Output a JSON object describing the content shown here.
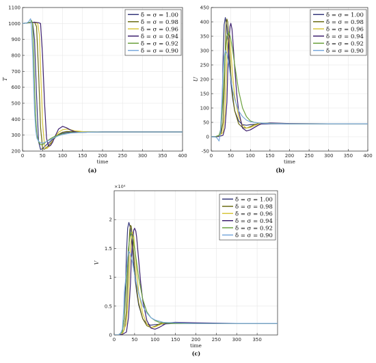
{
  "figure": {
    "colors": [
      "#34377a",
      "#6b6b12",
      "#d7c63a",
      "#3c1f6e",
      "#6aa13c",
      "#79a9dc"
    ]
  },
  "chart_data": [
    {
      "type": "line",
      "panel_label": "(a)",
      "xlabel": "time",
      "ylabel": "T",
      "xlim": [
        0,
        400
      ],
      "ylim": [
        200,
        1100
      ],
      "x_ticks": [
        0,
        50,
        100,
        150,
        200,
        250,
        300,
        350,
        400
      ],
      "y_ticks": [
        200,
        300,
        400,
        500,
        600,
        700,
        800,
        900,
        1000,
        1100
      ],
      "grid": true,
      "legend_position": "top-right",
      "series": [
        {
          "name": "δ = σ = 1.00",
          "x": [
            0,
            10,
            20,
            25,
            30,
            35,
            40,
            45,
            50,
            55,
            60,
            70,
            80,
            90,
            100,
            110,
            120,
            130,
            150,
            175,
            200,
            250,
            300,
            400
          ],
          "y": [
            1000,
            1003,
            1006,
            1008,
            900,
            550,
            260,
            210,
            215,
            228,
            240,
            262,
            285,
            302,
            312,
            317,
            319,
            320,
            320,
            320,
            320,
            320,
            320,
            320
          ]
        },
        {
          "name": "δ = σ = 0.98",
          "x": [
            0,
            10,
            20,
            30,
            35,
            40,
            45,
            50,
            55,
            60,
            70,
            80,
            90,
            100,
            110,
            120,
            140,
            160,
            200,
            250,
            300,
            400
          ],
          "y": [
            1000,
            1003,
            1006,
            1008,
            980,
            700,
            350,
            215,
            212,
            222,
            250,
            280,
            305,
            318,
            323,
            322,
            320,
            320,
            320,
            320,
            320,
            320
          ]
        },
        {
          "name": "δ = σ = 0.96",
          "x": [
            0,
            10,
            20,
            30,
            38,
            42,
            46,
            50,
            55,
            60,
            65,
            70,
            80,
            90,
            100,
            110,
            120,
            130,
            150,
            175,
            200,
            250,
            300,
            400
          ],
          "y": [
            1000,
            1003,
            1006,
            1008,
            1000,
            930,
            650,
            380,
            230,
            215,
            225,
            240,
            285,
            318,
            334,
            338,
            334,
            327,
            322,
            320,
            320,
            320,
            320,
            320
          ]
        },
        {
          "name": "δ = σ = 0.94",
          "x": [
            0,
            10,
            20,
            30,
            40,
            45,
            50,
            55,
            60,
            65,
            70,
            75,
            80,
            90,
            100,
            110,
            120,
            130,
            140,
            160,
            200,
            250,
            300,
            400
          ],
          "y": [
            1000,
            1003,
            1006,
            1008,
            1005,
            1000,
            800,
            500,
            280,
            230,
            235,
            255,
            285,
            338,
            355,
            346,
            332,
            322,
            317,
            318,
            320,
            320,
            320,
            320
          ]
        },
        {
          "name": "δ = σ = 0.92",
          "x": [
            0,
            10,
            20,
            22,
            25,
            28,
            30,
            33,
            36,
            40,
            45,
            50,
            55,
            60,
            70,
            80,
            90,
            100,
            120,
            150,
            200,
            250,
            300,
            400
          ],
          "y": [
            1000,
            1003,
            1008,
            1020,
            1000,
            800,
            600,
            400,
            300,
            260,
            240,
            240,
            250,
            260,
            278,
            292,
            300,
            308,
            315,
            318,
            320,
            320,
            320,
            320
          ]
        },
        {
          "name": "δ = σ = 0.90",
          "x": [
            0,
            10,
            15,
            20,
            22,
            25,
            28,
            30,
            33,
            36,
            40,
            45,
            50,
            55,
            60,
            70,
            80,
            90,
            100,
            120,
            150,
            200,
            300,
            400
          ],
          "y": [
            1000,
            1003,
            1010,
            1030,
            990,
            830,
            600,
            450,
            330,
            280,
            262,
            252,
            250,
            254,
            260,
            272,
            285,
            296,
            304,
            313,
            318,
            320,
            320,
            320
          ]
        }
      ]
    },
    {
      "type": "line",
      "panel_label": "(b)",
      "xlabel": "time",
      "ylabel": "U",
      "xlim": [
        0,
        400
      ],
      "ylim": [
        -50,
        450
      ],
      "x_ticks": [
        0,
        50,
        100,
        150,
        200,
        250,
        300,
        350,
        400
      ],
      "y_ticks": [
        -50,
        0,
        50,
        100,
        150,
        200,
        250,
        300,
        350,
        400,
        450
      ],
      "grid": true,
      "legend_position": "top-right",
      "series": [
        {
          "name": "δ = σ = 1.00",
          "x": [
            0,
            10,
            20,
            25,
            28,
            30,
            33,
            36,
            40,
            45,
            50,
            55,
            60,
            70,
            80,
            90,
            100,
            120,
            150,
            200,
            250,
            300,
            400
          ],
          "y": [
            0,
            0,
            2,
            20,
            120,
            260,
            390,
            415,
            380,
            280,
            190,
            130,
            90,
            55,
            42,
            40,
            42,
            44,
            45,
            45,
            45,
            45,
            45
          ]
        },
        {
          "name": "δ = σ = 0.98",
          "x": [
            0,
            10,
            20,
            25,
            30,
            33,
            36,
            38,
            40,
            42,
            45,
            50,
            55,
            60,
            70,
            80,
            90,
            100,
            110,
            120,
            140,
            160,
            200,
            300,
            400
          ],
          "y": [
            0,
            0,
            2,
            10,
            50,
            150,
            300,
            395,
            410,
            400,
            340,
            220,
            140,
            90,
            45,
            32,
            30,
            35,
            42,
            46,
            47,
            46,
            45,
            45,
            45
          ]
        },
        {
          "name": "δ = σ = 0.96",
          "x": [
            0,
            10,
            20,
            30,
            35,
            38,
            40,
            42,
            45,
            48,
            50,
            55,
            60,
            70,
            80,
            90,
            100,
            110,
            120,
            130,
            150,
            200,
            300,
            400
          ],
          "y": [
            0,
            0,
            2,
            15,
            80,
            200,
            280,
            330,
            350,
            330,
            300,
            210,
            140,
            70,
            40,
            30,
            32,
            38,
            44,
            47,
            47,
            46,
            45,
            45
          ]
        },
        {
          "name": "δ = σ = 0.94",
          "x": [
            0,
            10,
            20,
            30,
            35,
            40,
            42,
            45,
            48,
            50,
            53,
            55,
            60,
            65,
            70,
            80,
            90,
            100,
            110,
            120,
            130,
            150,
            200,
            300,
            400
          ],
          "y": [
            0,
            0,
            1,
            5,
            30,
            120,
            220,
            330,
            385,
            395,
            375,
            340,
            240,
            150,
            90,
            30,
            20,
            24,
            32,
            40,
            46,
            48,
            46,
            45,
            45
          ]
        },
        {
          "name": "δ = σ = 0.92",
          "x": [
            0,
            10,
            20,
            25,
            30,
            35,
            40,
            45,
            50,
            55,
            60,
            70,
            80,
            90,
            100,
            110,
            120,
            140,
            160,
            200,
            300,
            400
          ],
          "y": [
            0,
            0,
            5,
            30,
            130,
            270,
            350,
            365,
            340,
            300,
            250,
            160,
            100,
            70,
            55,
            50,
            48,
            47,
            46,
            45,
            45,
            45
          ]
        },
        {
          "name": "δ = σ = 0.90",
          "x": [
            0,
            10,
            15,
            20,
            23,
            25,
            28,
            30,
            33,
            36,
            40,
            45,
            50,
            55,
            60,
            70,
            80,
            90,
            100,
            120,
            150,
            200,
            300,
            400
          ],
          "y": [
            0,
            0,
            -5,
            -15,
            10,
            60,
            150,
            220,
            280,
            300,
            290,
            250,
            200,
            160,
            130,
            90,
            70,
            58,
            52,
            48,
            46,
            45,
            45,
            45
          ]
        }
      ]
    },
    {
      "type": "line",
      "panel_label": "(c)",
      "xlabel": "time",
      "ylabel": "V",
      "exponent_label": "×10⁴",
      "y_scale_factor": 10000,
      "xlim": [
        0,
        400
      ],
      "ylim": [
        0,
        2.5
      ],
      "x_ticks": [
        0,
        50,
        100,
        150,
        200,
        250,
        300,
        350
      ],
      "y_ticks": [
        0,
        0.5,
        1,
        1.5,
        2
      ],
      "grid": true,
      "legend_position": "top-right",
      "series": [
        {
          "name": "δ = σ = 1.00",
          "x": [
            0,
            10,
            20,
            25,
            28,
            30,
            33,
            36,
            40,
            45,
            50,
            55,
            60,
            70,
            80,
            90,
            100,
            120,
            150,
            200,
            250,
            300,
            400
          ],
          "y": [
            0,
            0,
            0.05,
            0.3,
            0.9,
            1.4,
            1.85,
            1.95,
            1.85,
            1.45,
            1.05,
            0.75,
            0.52,
            0.28,
            0.19,
            0.17,
            0.18,
            0.19,
            0.2,
            0.2,
            0.2,
            0.2,
            0.2
          ]
        },
        {
          "name": "δ = σ = 0.98",
          "x": [
            0,
            10,
            20,
            25,
            30,
            33,
            36,
            38,
            40,
            42,
            45,
            50,
            55,
            60,
            70,
            80,
            90,
            100,
            110,
            120,
            140,
            160,
            200,
            300,
            400
          ],
          "y": [
            0,
            0,
            0.02,
            0.1,
            0.4,
            0.9,
            1.5,
            1.8,
            1.9,
            1.88,
            1.7,
            1.2,
            0.8,
            0.55,
            0.28,
            0.16,
            0.13,
            0.15,
            0.19,
            0.21,
            0.21,
            0.21,
            0.2,
            0.2,
            0.2
          ]
        },
        {
          "name": "δ = σ = 0.96",
          "x": [
            0,
            10,
            20,
            30,
            35,
            38,
            40,
            42,
            45,
            48,
            50,
            55,
            60,
            70,
            80,
            90,
            100,
            110,
            120,
            130,
            150,
            200,
            300,
            400
          ],
          "y": [
            0,
            0,
            0.02,
            0.2,
            0.7,
            1.2,
            1.5,
            1.7,
            1.78,
            1.7,
            1.55,
            1.1,
            0.75,
            0.37,
            0.19,
            0.13,
            0.14,
            0.17,
            0.2,
            0.21,
            0.21,
            0.2,
            0.2,
            0.2
          ]
        },
        {
          "name": "δ = σ = 0.94",
          "x": [
            0,
            10,
            20,
            30,
            35,
            40,
            42,
            45,
            48,
            50,
            53,
            55,
            60,
            65,
            70,
            80,
            90,
            100,
            110,
            120,
            130,
            150,
            200,
            300,
            400
          ],
          "y": [
            0,
            0,
            0.01,
            0.05,
            0.3,
            0.9,
            1.3,
            1.65,
            1.82,
            1.85,
            1.8,
            1.7,
            1.3,
            0.9,
            0.6,
            0.25,
            0.12,
            0.1,
            0.13,
            0.17,
            0.21,
            0.22,
            0.21,
            0.2,
            0.2
          ]
        },
        {
          "name": "δ = σ = 0.92",
          "x": [
            0,
            10,
            20,
            25,
            30,
            35,
            40,
            45,
            50,
            55,
            60,
            70,
            80,
            90,
            100,
            110,
            120,
            140,
            160,
            200,
            300,
            400
          ],
          "y": [
            0,
            0,
            0.05,
            0.3,
            0.9,
            1.5,
            1.78,
            1.72,
            1.5,
            1.25,
            1.0,
            0.62,
            0.4,
            0.3,
            0.25,
            0.22,
            0.21,
            0.2,
            0.2,
            0.2,
            0.2,
            0.2
          ]
        },
        {
          "name": "δ = σ = 0.90",
          "x": [
            0,
            10,
            15,
            20,
            23,
            25,
            28,
            30,
            33,
            36,
            40,
            45,
            50,
            55,
            60,
            70,
            80,
            90,
            100,
            120,
            150,
            200,
            300,
            400
          ],
          "y": [
            0,
            0,
            0.02,
            0.1,
            0.4,
            0.75,
            0.95,
            1.1,
            1.35,
            1.45,
            1.4,
            1.25,
            1.05,
            0.88,
            0.72,
            0.5,
            0.38,
            0.3,
            0.26,
            0.22,
            0.21,
            0.2,
            0.2,
            0.2
          ]
        }
      ]
    }
  ]
}
